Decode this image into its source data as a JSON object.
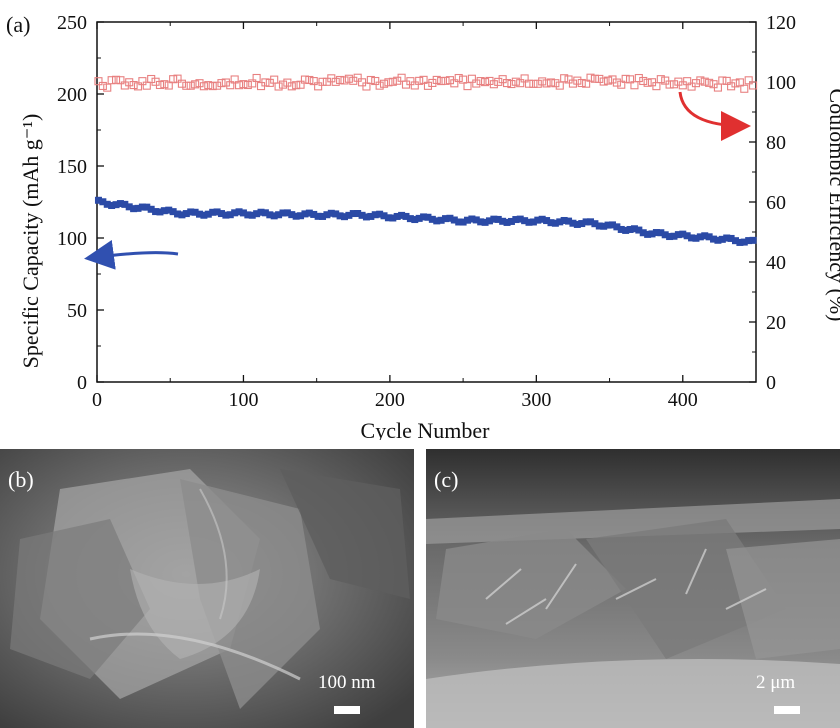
{
  "panels": {
    "a_label": "(a)",
    "b_label": "(b)",
    "c_label": "(c)"
  },
  "sem": {
    "b_scale": "100 nm",
    "c_scale": "2 μm"
  },
  "chart_data": {
    "type": "scatter",
    "xlabel": "Cycle Number",
    "ylabel_left": "Specific Capacity (mAh g⁻¹)",
    "ylabel_right": "Coulombic Efficiency (%)",
    "xlim": [
      0,
      450
    ],
    "ylim_left": [
      0,
      250
    ],
    "ylim_right": [
      0,
      120
    ],
    "x_ticks": [
      "0",
      "100",
      "200",
      "300",
      "400"
    ],
    "y_left_ticks": [
      "0",
      "50",
      "100",
      "150",
      "200",
      "250"
    ],
    "y_right_ticks": [
      "0",
      "20",
      "40",
      "60",
      "80",
      "100",
      "120"
    ],
    "grid": false,
    "series": [
      {
        "axis": "left",
        "marker": "filled-square",
        "color": "#2b4aa6",
        "x": [
          1,
          50,
          60,
          100,
          150,
          180,
          200,
          250,
          300,
          340,
          380,
          420,
          450
        ],
        "y": [
          125,
          118,
          117,
          117,
          116,
          116,
          115,
          112,
          112,
          110,
          103,
          100,
          97
        ]
      },
      {
        "axis": "right",
        "marker": "open-square",
        "color": "#e88080",
        "x": [
          1,
          50,
          100,
          150,
          200,
          250,
          300,
          350,
          400,
          450
        ],
        "y": [
          99,
          100,
          100,
          100,
          100,
          100,
          100,
          100,
          100,
          99
        ]
      }
    ],
    "annotations": [
      {
        "type": "arrow",
        "color": "#3050b0",
        "points_to": "left axis"
      },
      {
        "type": "arrow",
        "color": "#e03030",
        "points_to": "right axis"
      }
    ]
  }
}
